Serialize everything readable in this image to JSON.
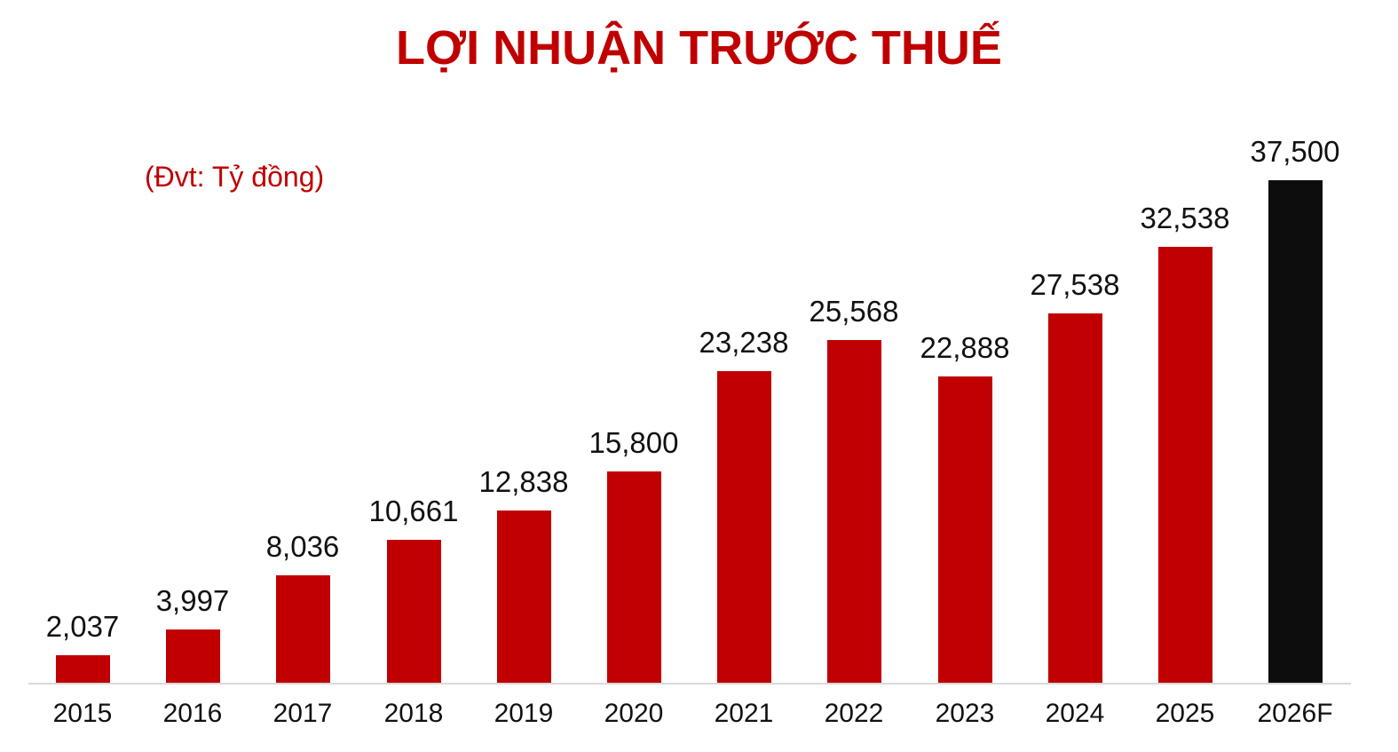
{
  "title": "LỢI NHUẬN TRƯỚC THUẾ",
  "unit_label": "(Đvt: Tỷ đồng)",
  "colors": {
    "title": "#c00000",
    "bar": "#c00000",
    "forecast_bar": "#0d0d0d",
    "baseline": "#d9d9d9"
  },
  "bars": [
    {
      "category": "2015",
      "value": 2037,
      "label": "2,037"
    },
    {
      "category": "2016",
      "value": 3997,
      "label": "3,997"
    },
    {
      "category": "2017",
      "value": 8036,
      "label": "8,036"
    },
    {
      "category": "2018",
      "value": 10661,
      "label": "10,661"
    },
    {
      "category": "2019",
      "value": 12838,
      "label": "12,838"
    },
    {
      "category": "2020",
      "value": 15800,
      "label": "15,800"
    },
    {
      "category": "2021",
      "value": 23238,
      "label": "23,238"
    },
    {
      "category": "2022",
      "value": 25568,
      "label": "25,568"
    },
    {
      "category": "2023",
      "value": 22888,
      "label": "22,888"
    },
    {
      "category": "2024",
      "value": 27538,
      "label": "27,538"
    },
    {
      "category": "2025",
      "value": 32538,
      "label": "32,538"
    },
    {
      "category": "2026F",
      "value": 37500,
      "label": "37,500",
      "forecast": true
    }
  ],
  "chart_data": {
    "type": "bar",
    "title": "LỢI NHUẬN TRƯỚC THUẾ",
    "subtitle": "(Đvt: Tỷ đồng)",
    "xlabel": "",
    "ylabel": "",
    "categories": [
      "2015",
      "2016",
      "2017",
      "2018",
      "2019",
      "2020",
      "2021",
      "2022",
      "2023",
      "2024",
      "2025",
      "2026F"
    ],
    "values": [
      2037,
      3997,
      8036,
      10661,
      12838,
      15800,
      23238,
      25568,
      22888,
      27538,
      32538,
      37500
    ],
    "data_labels": [
      "2,037",
      "3,997",
      "8,036",
      "10,661",
      "12,838",
      "15,800",
      "23,238",
      "25,568",
      "22,888",
      "27,538",
      "32,538",
      "37,500"
    ],
    "highlight": {
      "category": "2026F",
      "color": "#0d0d0d",
      "note": "forecast"
    },
    "bar_color": "#c00000",
    "ylim": [
      0,
      37500
    ],
    "grid": false,
    "legend": null,
    "y_axis_visible": false
  }
}
